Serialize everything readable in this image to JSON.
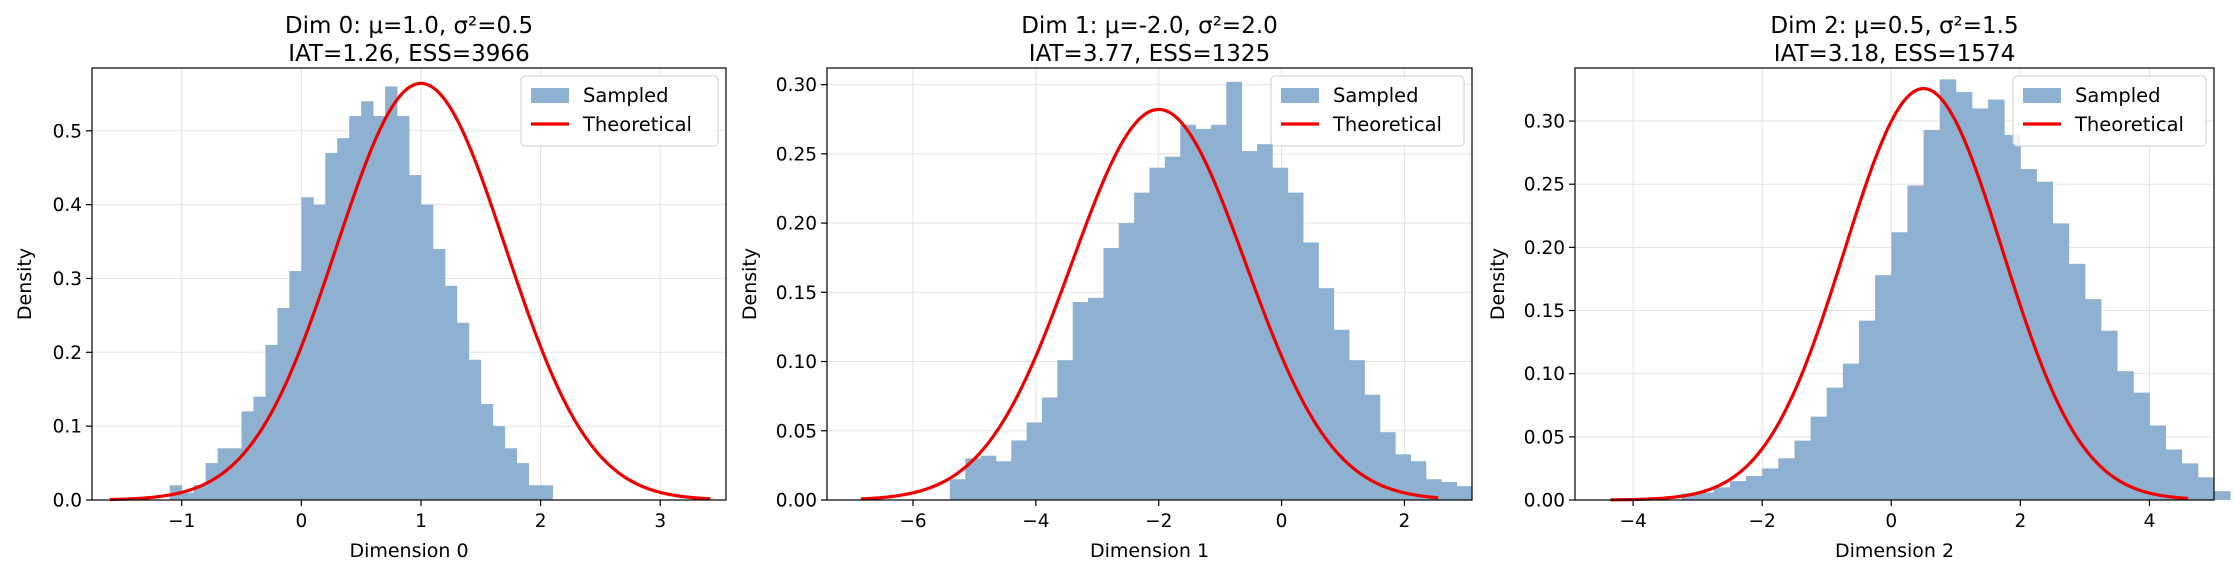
{
  "colors": {
    "hist": "#8fb1d1",
    "curve": "#ee0000",
    "grid": "#e3e3e3",
    "axis": "#000000"
  },
  "chart_data": [
    {
      "type": "bar",
      "title_line1": "Dim 0: μ=1.0, σ²=0.5",
      "title_line2": "IAT=1.26, ESS=3966",
      "xlabel": "Dimension 0",
      "ylabel": "Density",
      "xlim": [
        -1.75,
        3.55
      ],
      "ylim": [
        0,
        0.585
      ],
      "xticks": [
        -1,
        0,
        1,
        2,
        3
      ],
      "xtick_labels": [
        "−1",
        "0",
        "1",
        "2",
        "3"
      ],
      "yticks": [
        0,
        0.1,
        0.2,
        0.3,
        0.4,
        0.5
      ],
      "ytick_labels": [
        "0.0",
        "0.1",
        "0.2",
        "0.3",
        "0.4",
        "0.5"
      ],
      "grid": true,
      "legend": {
        "position": "top-right",
        "hist_label": "Sampled",
        "curve_label": "Theoretical"
      },
      "curve": {
        "mu": 1.0,
        "var": 0.5,
        "x_range": [
          -1.6,
          3.42
        ]
      },
      "bin_start": -1.1,
      "bin_width": 0.1,
      "values": [
        0.02,
        0.01,
        0.02,
        0.05,
        0.07,
        0.07,
        0.12,
        0.14,
        0.21,
        0.26,
        0.31,
        0.41,
        0.4,
        0.47,
        0.49,
        0.52,
        0.54,
        0.52,
        0.56,
        0.52,
        0.44,
        0.4,
        0.34,
        0.29,
        0.24,
        0.19,
        0.13,
        0.1,
        0.07,
        0.05,
        0.02,
        0.02
      ]
    },
    {
      "type": "bar",
      "title_line1": "Dim 1: μ=-2.0, σ²=2.0",
      "title_line2": "IAT=3.77, ESS=1325",
      "xlabel": "Dimension 1",
      "ylabel": "Density",
      "xlim": [
        -7.4,
        3.1
      ],
      "ylim": [
        0,
        0.312
      ],
      "xticks": [
        -6,
        -4,
        -2,
        0,
        2
      ],
      "xtick_labels": [
        "−6",
        "−4",
        "−2",
        "0",
        "2"
      ],
      "yticks": [
        0,
        0.05,
        0.1,
        0.15,
        0.2,
        0.25,
        0.3
      ],
      "ytick_labels": [
        "0.00",
        "0.05",
        "0.10",
        "0.15",
        "0.20",
        "0.25",
        "0.30"
      ],
      "grid": true,
      "legend": {
        "position": "top-right",
        "hist_label": "Sampled",
        "curve_label": "Theoretical"
      },
      "curve": {
        "mu": -2.0,
        "var": 2.0,
        "x_range": [
          -6.85,
          2.55
        ]
      },
      "bin_start": -5.4,
      "bin_width": 0.25,
      "values": [
        0.015,
        0.03,
        0.032,
        0.028,
        0.043,
        0.056,
        0.074,
        0.101,
        0.143,
        0.146,
        0.182,
        0.2,
        0.222,
        0.24,
        0.248,
        0.271,
        0.268,
        0.271,
        0.302,
        0.252,
        0.257,
        0.24,
        0.222,
        0.186,
        0.153,
        0.123,
        0.101,
        0.076,
        0.049,
        0.033,
        0.028,
        0.015,
        0.013,
        0.01
      ]
    },
    {
      "type": "bar",
      "title_line1": "Dim 2: μ=0.5, σ²=1.5",
      "title_line2": "IAT=3.18, ESS=1574",
      "xlabel": "Dimension 2",
      "ylabel": "Density",
      "xlim": [
        -4.9,
        5.0
      ],
      "ylim": [
        0,
        0.342
      ],
      "xticks": [
        -4,
        -2,
        0,
        2,
        4
      ],
      "xtick_labels": [
        "−4",
        "−2",
        "0",
        "2",
        "4"
      ],
      "yticks": [
        0,
        0.05,
        0.1,
        0.15,
        0.2,
        0.25,
        0.3
      ],
      "ytick_labels": [
        "0.00",
        "0.05",
        "0.10",
        "0.15",
        "0.20",
        "0.25",
        "0.30"
      ],
      "grid": true,
      "legend": {
        "position": "top-right",
        "hist_label": "Sampled",
        "curve_label": "Theoretical"
      },
      "curve": {
        "mu": 0.5,
        "var": 1.5,
        "x_range": [
          -4.35,
          4.6
        ]
      },
      "bin_start": -3.25,
      "bin_width": 0.25,
      "values": [
        0.005,
        0.006,
        0.01,
        0.015,
        0.019,
        0.025,
        0.033,
        0.047,
        0.066,
        0.089,
        0.108,
        0.142,
        0.178,
        0.212,
        0.249,
        0.293,
        0.333,
        0.323,
        0.31,
        0.317,
        0.289,
        0.262,
        0.252,
        0.219,
        0.187,
        0.159,
        0.134,
        0.102,
        0.085,
        0.059,
        0.04,
        0.029,
        0.018,
        0.007
      ]
    }
  ]
}
